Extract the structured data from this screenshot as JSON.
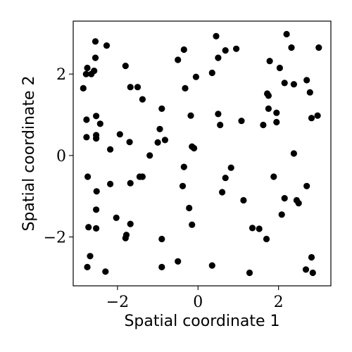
{
  "chart_data": {
    "type": "scatter",
    "title": "",
    "xlabel": "Spatial coordinate 1",
    "ylabel": "Spatial coordinate 2",
    "xlim": [
      -3.1,
      3.3
    ],
    "ylim": [
      -3.2,
      3.3
    ],
    "xticks": [
      -2,
      0,
      2
    ],
    "yticks": [
      -2,
      0,
      2
    ],
    "xtick_labels": [
      "−2",
      "0",
      "2"
    ],
    "ytick_labels": [
      "−2",
      "0",
      "2"
    ],
    "grid": false,
    "point_color": "#000000",
    "points": [
      {
        "x": -2.55,
        "y": 2.8
      },
      {
        "x": -2.75,
        "y": 2.15
      },
      {
        "x": -2.55,
        "y": 2.4
      },
      {
        "x": -2.78,
        "y": 2.0
      },
      {
        "x": -2.65,
        "y": 2.0
      },
      {
        "x": -2.58,
        "y": 2.08
      },
      {
        "x": -2.85,
        "y": 1.65
      },
      {
        "x": -2.27,
        "y": 2.7
      },
      {
        "x": -1.8,
        "y": 2.2
      },
      {
        "x": -1.68,
        "y": 1.68
      },
      {
        "x": -1.5,
        "y": 1.68
      },
      {
        "x": -1.38,
        "y": 1.38
      },
      {
        "x": -2.77,
        "y": 0.88
      },
      {
        "x": -2.77,
        "y": 0.45
      },
      {
        "x": -2.53,
        "y": 0.97
      },
      {
        "x": -2.43,
        "y": 0.78
      },
      {
        "x": -2.53,
        "y": 0.5
      },
      {
        "x": -2.53,
        "y": 0.42
      },
      {
        "x": -1.94,
        "y": 0.52
      },
      {
        "x": -1.7,
        "y": 0.33
      },
      {
        "x": -2.18,
        "y": 0.15
      },
      {
        "x": -2.74,
        "y": -0.52
      },
      {
        "x": -2.18,
        "y": -0.7
      },
      {
        "x": -1.68,
        "y": -0.68
      },
      {
        "x": -1.45,
        "y": -0.52
      },
      {
        "x": -1.38,
        "y": -0.52
      },
      {
        "x": -2.52,
        "y": -0.88
      },
      {
        "x": -2.53,
        "y": -1.33
      },
      {
        "x": -2.03,
        "y": -1.53
      },
      {
        "x": -1.68,
        "y": -1.68
      },
      {
        "x": -2.72,
        "y": -1.76
      },
      {
        "x": -2.53,
        "y": -1.79
      },
      {
        "x": -1.78,
        "y": -1.95
      },
      {
        "x": -1.8,
        "y": -2.03
      },
      {
        "x": -2.68,
        "y": -2.47
      },
      {
        "x": -2.75,
        "y": -2.74
      },
      {
        "x": -2.3,
        "y": -2.85
      },
      {
        "x": -0.9,
        "y": -2.05
      },
      {
        "x": -0.9,
        "y": -2.74
      },
      {
        "x": -0.5,
        "y": -2.6
      },
      {
        "x": -0.5,
        "y": 2.35
      },
      {
        "x": -0.35,
        "y": 2.6
      },
      {
        "x": -0.32,
        "y": 1.65
      },
      {
        "x": -0.05,
        "y": 1.93
      },
      {
        "x": -0.9,
        "y": 1.15
      },
      {
        "x": -0.95,
        "y": 0.65
      },
      {
        "x": -1.0,
        "y": 0.32
      },
      {
        "x": -0.82,
        "y": 0.38
      },
      {
        "x": -1.2,
        "y": 0.0
      },
      {
        "x": -0.18,
        "y": 0.98
      },
      {
        "x": -0.15,
        "y": 0.22
      },
      {
        "x": -0.1,
        "y": 0.18
      },
      {
        "x": -0.35,
        "y": -0.28
      },
      {
        "x": -0.38,
        "y": -0.75
      },
      {
        "x": -0.22,
        "y": -1.29
      },
      {
        "x": -0.15,
        "y": -1.7
      },
      {
        "x": 0.45,
        "y": 2.93
      },
      {
        "x": 0.5,
        "y": 2.4
      },
      {
        "x": 0.68,
        "y": 2.58
      },
      {
        "x": 0.95,
        "y": 2.62
      },
      {
        "x": 0.35,
        "y": 2.03
      },
      {
        "x": 0.5,
        "y": 1.02
      },
      {
        "x": 0.55,
        "y": 0.75
      },
      {
        "x": 1.08,
        "y": 0.85
      },
      {
        "x": 0.82,
        "y": -0.3
      },
      {
        "x": 0.68,
        "y": -0.55
      },
      {
        "x": 0.6,
        "y": -0.9
      },
      {
        "x": 1.13,
        "y": -1.1
      },
      {
        "x": 1.35,
        "y": -1.78
      },
      {
        "x": 1.52,
        "y": -1.8
      },
      {
        "x": 1.7,
        "y": -2.05
      },
      {
        "x": 0.35,
        "y": -2.7
      },
      {
        "x": 1.28,
        "y": -2.88
      },
      {
        "x": 2.2,
        "y": 2.98
      },
      {
        "x": 2.32,
        "y": 2.65
      },
      {
        "x": 1.78,
        "y": 2.32
      },
      {
        "x": 2.03,
        "y": 2.15
      },
      {
        "x": 2.15,
        "y": 1.78
      },
      {
        "x": 2.38,
        "y": 1.75
      },
      {
        "x": 2.7,
        "y": 1.85
      },
      {
        "x": 2.78,
        "y": 1.55
      },
      {
        "x": 1.72,
        "y": 1.52
      },
      {
        "x": 1.75,
        "y": 1.47
      },
      {
        "x": 1.75,
        "y": 1.15
      },
      {
        "x": 1.95,
        "y": 1.05
      },
      {
        "x": 1.95,
        "y": 0.82
      },
      {
        "x": 1.62,
        "y": 0.75
      },
      {
        "x": 2.82,
        "y": 0.92
      },
      {
        "x": 2.97,
        "y": 0.98
      },
      {
        "x": 3.0,
        "y": 2.65
      },
      {
        "x": 2.38,
        "y": 0.05
      },
      {
        "x": 1.88,
        "y": -0.52
      },
      {
        "x": 2.15,
        "y": -1.05
      },
      {
        "x": 2.45,
        "y": -1.1
      },
      {
        "x": 2.5,
        "y": -1.17
      },
      {
        "x": 2.08,
        "y": -1.45
      },
      {
        "x": 2.7,
        "y": -0.75
      },
      {
        "x": 2.82,
        "y": -2.5
      },
      {
        "x": 2.68,
        "y": -2.8
      },
      {
        "x": 2.85,
        "y": -2.88
      }
    ]
  }
}
